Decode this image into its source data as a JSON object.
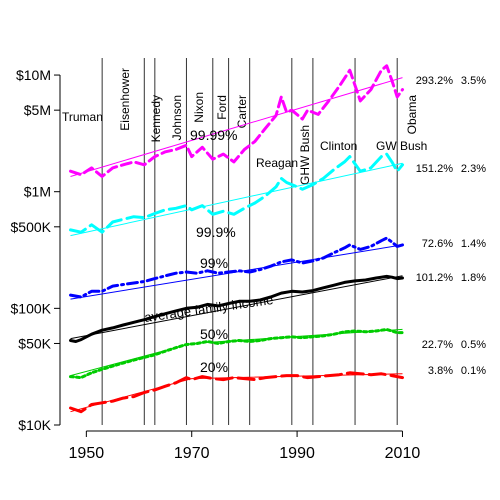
{
  "chart_data": {
    "type": "line",
    "title": "",
    "xlabel": "",
    "ylabel": "",
    "y_scale": "log",
    "xlim": [
      1945,
      2012
    ],
    "ylim": [
      10000,
      14000000
    ],
    "x_ticks": [
      {
        "value": 1950,
        "label": "1950"
      },
      {
        "value": 1970,
        "label": "1970"
      },
      {
        "value": 1990,
        "label": "1990"
      },
      {
        "value": 2010,
        "label": "2010"
      }
    ],
    "y_ticks": [
      {
        "value": 10000,
        "label": "$10K"
      },
      {
        "value": 50000,
        "label": "$50K"
      },
      {
        "value": 100000,
        "label": "$100K"
      },
      {
        "value": 500000,
        "label": "$500K"
      },
      {
        "value": 1000000,
        "label": "$1M"
      },
      {
        "value": 5000000,
        "label": "$5M"
      },
      {
        "value": 10000000,
        "label": "$10M"
      }
    ],
    "presidents": [
      {
        "name": "Truman",
        "start": 1945
      },
      {
        "name": "Eisenhower",
        "start": 1953
      },
      {
        "name": "Kennedy",
        "start": 1961
      },
      {
        "name": "Johnson",
        "start": 1963
      },
      {
        "name": "Nixon",
        "start": 1969
      },
      {
        "name": "Ford",
        "start": 1974
      },
      {
        "name": "Carter",
        "start": 1977
      },
      {
        "name": "Reagan",
        "start": 1981
      },
      {
        "name": "GHW Bush",
        "start": 1989
      },
      {
        "name": "Clinton",
        "start": 1993
      },
      {
        "name": "GW Bush",
        "start": 2001
      },
      {
        "name": "Obama",
        "start": 2009
      }
    ],
    "series": [
      {
        "name": "99.99%",
        "color": "#ff00ff",
        "dash": "dash",
        "change_total": "293.2%",
        "change_annual": "3.5%",
        "points": [
          [
            1947,
            1500000
          ],
          [
            1949,
            1400000
          ],
          [
            1951,
            1600000
          ],
          [
            1953,
            1350000
          ],
          [
            1955,
            1600000
          ],
          [
            1957,
            1700000
          ],
          [
            1959,
            1800000
          ],
          [
            1961,
            1700000
          ],
          [
            1963,
            2000000
          ],
          [
            1965,
            2200000
          ],
          [
            1967,
            2300000
          ],
          [
            1969,
            2500000
          ],
          [
            1970,
            2000000
          ],
          [
            1972,
            2400000
          ],
          [
            1974,
            1900000
          ],
          [
            1976,
            2100000
          ],
          [
            1978,
            1800000
          ],
          [
            1980,
            2300000
          ],
          [
            1982,
            2700000
          ],
          [
            1984,
            3500000
          ],
          [
            1986,
            4500000
          ],
          [
            1987,
            6500000
          ],
          [
            1988,
            4800000
          ],
          [
            1989,
            5000000
          ],
          [
            1991,
            4200000
          ],
          [
            1992,
            5000000
          ],
          [
            1994,
            4600000
          ],
          [
            1996,
            6000000
          ],
          [
            1998,
            8000000
          ],
          [
            2000,
            11000000
          ],
          [
            2002,
            6000000
          ],
          [
            2004,
            7500000
          ],
          [
            2006,
            11000000
          ],
          [
            2007,
            12000000
          ],
          [
            2008,
            9000000
          ],
          [
            2009,
            6500000
          ],
          [
            2010,
            7500000
          ]
        ],
        "trend": [
          [
            1947,
            1350000
          ],
          [
            2010,
            9500000
          ]
        ]
      },
      {
        "name": "99.9%",
        "color": "#00ffff",
        "dash": "longdash",
        "change_total": "151.2%",
        "change_annual": "2.3%",
        "points": [
          [
            1947,
            470000
          ],
          [
            1949,
            450000
          ],
          [
            1951,
            520000
          ],
          [
            1953,
            450000
          ],
          [
            1955,
            550000
          ],
          [
            1957,
            580000
          ],
          [
            1959,
            610000
          ],
          [
            1961,
            600000
          ],
          [
            1963,
            650000
          ],
          [
            1965,
            700000
          ],
          [
            1967,
            720000
          ],
          [
            1969,
            760000
          ],
          [
            1970,
            700000
          ],
          [
            1972,
            760000
          ],
          [
            1974,
            640000
          ],
          [
            1976,
            680000
          ],
          [
            1978,
            640000
          ],
          [
            1980,
            720000
          ],
          [
            1982,
            800000
          ],
          [
            1984,
            920000
          ],
          [
            1986,
            1100000
          ],
          [
            1987,
            1300000
          ],
          [
            1988,
            1200000
          ],
          [
            1989,
            1150000
          ],
          [
            1991,
            1050000
          ],
          [
            1993,
            1150000
          ],
          [
            1995,
            1300000
          ],
          [
            1997,
            1550000
          ],
          [
            1999,
            1800000
          ],
          [
            2000,
            2000000
          ],
          [
            2002,
            1500000
          ],
          [
            2004,
            1600000
          ],
          [
            2006,
            2000000
          ],
          [
            2007,
            2100000
          ],
          [
            2008,
            1800000
          ],
          [
            2009,
            1500000
          ],
          [
            2010,
            1700000
          ]
        ],
        "trend": [
          [
            1947,
            420000
          ],
          [
            2010,
            1750000
          ]
        ]
      },
      {
        "name": "99%",
        "color": "#0000ff",
        "dash": "dashdot",
        "change_total": "72.6%",
        "change_annual": "1.4%",
        "points": [
          [
            1947,
            130000
          ],
          [
            1949,
            125000
          ],
          [
            1951,
            140000
          ],
          [
            1953,
            140000
          ],
          [
            1955,
            155000
          ],
          [
            1957,
            160000
          ],
          [
            1959,
            165000
          ],
          [
            1961,
            170000
          ],
          [
            1963,
            180000
          ],
          [
            1965,
            190000
          ],
          [
            1967,
            200000
          ],
          [
            1969,
            205000
          ],
          [
            1971,
            200000
          ],
          [
            1973,
            210000
          ],
          [
            1975,
            200000
          ],
          [
            1977,
            205000
          ],
          [
            1979,
            210000
          ],
          [
            1981,
            205000
          ],
          [
            1983,
            215000
          ],
          [
            1985,
            230000
          ],
          [
            1987,
            250000
          ],
          [
            1989,
            260000
          ],
          [
            1991,
            245000
          ],
          [
            1993,
            255000
          ],
          [
            1995,
            270000
          ],
          [
            1997,
            300000
          ],
          [
            1999,
            330000
          ],
          [
            2000,
            350000
          ],
          [
            2002,
            320000
          ],
          [
            2004,
            340000
          ],
          [
            2006,
            380000
          ],
          [
            2007,
            400000
          ],
          [
            2008,
            370000
          ],
          [
            2009,
            340000
          ],
          [
            2010,
            350000
          ]
        ],
        "trend": [
          [
            1947,
            120000
          ],
          [
            2010,
            350000
          ]
        ]
      },
      {
        "name": "average family income",
        "color": "#000000",
        "dash": "solid",
        "change_total": "101.2%",
        "change_annual": "1.8%",
        "points": [
          [
            1947,
            53000
          ],
          [
            1948,
            52000
          ],
          [
            1949,
            54000
          ],
          [
            1951,
            60000
          ],
          [
            1953,
            65000
          ],
          [
            1955,
            68000
          ],
          [
            1957,
            72000
          ],
          [
            1959,
            76000
          ],
          [
            1961,
            80000
          ],
          [
            1963,
            85000
          ],
          [
            1965,
            90000
          ],
          [
            1967,
            95000
          ],
          [
            1969,
            100000
          ],
          [
            1971,
            102000
          ],
          [
            1973,
            108000
          ],
          [
            1975,
            105000
          ],
          [
            1977,
            110000
          ],
          [
            1979,
            115000
          ],
          [
            1981,
            115000
          ],
          [
            1983,
            118000
          ],
          [
            1985,
            125000
          ],
          [
            1987,
            135000
          ],
          [
            1989,
            140000
          ],
          [
            1991,
            138000
          ],
          [
            1993,
            142000
          ],
          [
            1995,
            150000
          ],
          [
            1997,
            158000
          ],
          [
            1999,
            167000
          ],
          [
            2001,
            172000
          ],
          [
            2003,
            175000
          ],
          [
            2005,
            182000
          ],
          [
            2007,
            188000
          ],
          [
            2008,
            185000
          ],
          [
            2009,
            180000
          ],
          [
            2010,
            182000
          ]
        ],
        "trend": [
          [
            1947,
            55000
          ],
          [
            2010,
            190000
          ]
        ]
      },
      {
        "name": "50%",
        "color": "#00cc00",
        "dash": "dot",
        "change_total": "22.7%",
        "change_annual": "0.5%",
        "points": [
          [
            1947,
            26000
          ],
          [
            1949,
            25500
          ],
          [
            1951,
            28000
          ],
          [
            1953,
            30000
          ],
          [
            1955,
            32000
          ],
          [
            1957,
            34000
          ],
          [
            1959,
            36000
          ],
          [
            1961,
            38000
          ],
          [
            1963,
            40000
          ],
          [
            1965,
            43000
          ],
          [
            1967,
            46000
          ],
          [
            1969,
            49000
          ],
          [
            1971,
            50000
          ],
          [
            1973,
            52000
          ],
          [
            1975,
            50000
          ],
          [
            1977,
            52000
          ],
          [
            1979,
            53000
          ],
          [
            1981,
            52000
          ],
          [
            1983,
            53000
          ],
          [
            1985,
            55000
          ],
          [
            1987,
            56000
          ],
          [
            1989,
            57000
          ],
          [
            1991,
            56000
          ],
          [
            1993,
            57000
          ],
          [
            1995,
            58000
          ],
          [
            1997,
            60000
          ],
          [
            1999,
            63000
          ],
          [
            2001,
            64000
          ],
          [
            2003,
            63000
          ],
          [
            2005,
            64000
          ],
          [
            2007,
            66000
          ],
          [
            2009,
            62000
          ],
          [
            2010,
            62000
          ]
        ],
        "trend": [
          [
            1947,
            26500
          ],
          [
            1970,
            50000
          ],
          [
            2010,
            66000
          ]
        ]
      },
      {
        "name": "20%",
        "color": "#ff0000",
        "dash": "longdash",
        "change_total": "3.8%",
        "change_annual": "0.1%",
        "points": [
          [
            1947,
            14000
          ],
          [
            1949,
            13000
          ],
          [
            1951,
            15000
          ],
          [
            1953,
            15500
          ],
          [
            1955,
            16000
          ],
          [
            1957,
            17000
          ],
          [
            1959,
            17500
          ],
          [
            1961,
            19000
          ],
          [
            1963,
            20000
          ],
          [
            1965,
            21500
          ],
          [
            1967,
            23000
          ],
          [
            1969,
            25500
          ],
          [
            1970,
            24500
          ],
          [
            1972,
            26000
          ],
          [
            1974,
            25000
          ],
          [
            1976,
            24500
          ],
          [
            1978,
            25500
          ],
          [
            1980,
            25000
          ],
          [
            1982,
            24500
          ],
          [
            1984,
            25500
          ],
          [
            1986,
            26000
          ],
          [
            1988,
            26500
          ],
          [
            1990,
            26500
          ],
          [
            1992,
            25500
          ],
          [
            1994,
            26000
          ],
          [
            1996,
            26500
          ],
          [
            1998,
            27000
          ],
          [
            2000,
            28000
          ],
          [
            2002,
            27500
          ],
          [
            2004,
            27000
          ],
          [
            2006,
            27500
          ],
          [
            2008,
            26500
          ],
          [
            2009,
            26000
          ],
          [
            2010,
            25500
          ]
        ],
        "trend": [
          [
            1947,
            13000
          ],
          [
            1970,
            25000
          ],
          [
            2010,
            27500
          ]
        ]
      }
    ]
  }
}
